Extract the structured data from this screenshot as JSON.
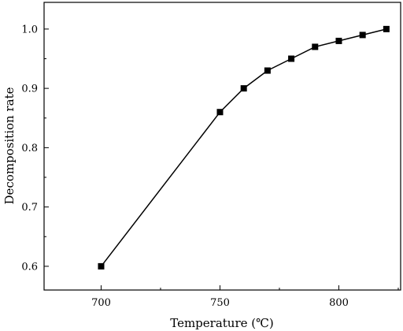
{
  "chart_data": {
    "type": "line",
    "xlabel": "Temperature (℃)",
    "ylabel": "Decomposition rate",
    "xlim": [
      676,
      826
    ],
    "ylim": [
      0.56,
      1.045
    ],
    "xticks": [
      700,
      750,
      800
    ],
    "xtick_labels": [
      "700",
      "750",
      "800"
    ],
    "yticks": [
      0.6,
      0.7,
      0.8,
      0.9,
      1.0
    ],
    "ytick_labels": [
      "0.6",
      "0.7",
      "0.8",
      "0.9",
      "1.0"
    ],
    "series": [
      {
        "x": [
          700,
          750,
          760,
          770,
          780,
          790,
          800,
          810,
          820
        ],
        "y": [
          0.6,
          0.86,
          0.9,
          0.93,
          0.95,
          0.97,
          0.98,
          0.99,
          1.0
        ],
        "marker": "square",
        "color": "#000000"
      }
    ],
    "grid": false,
    "legend": false
  }
}
